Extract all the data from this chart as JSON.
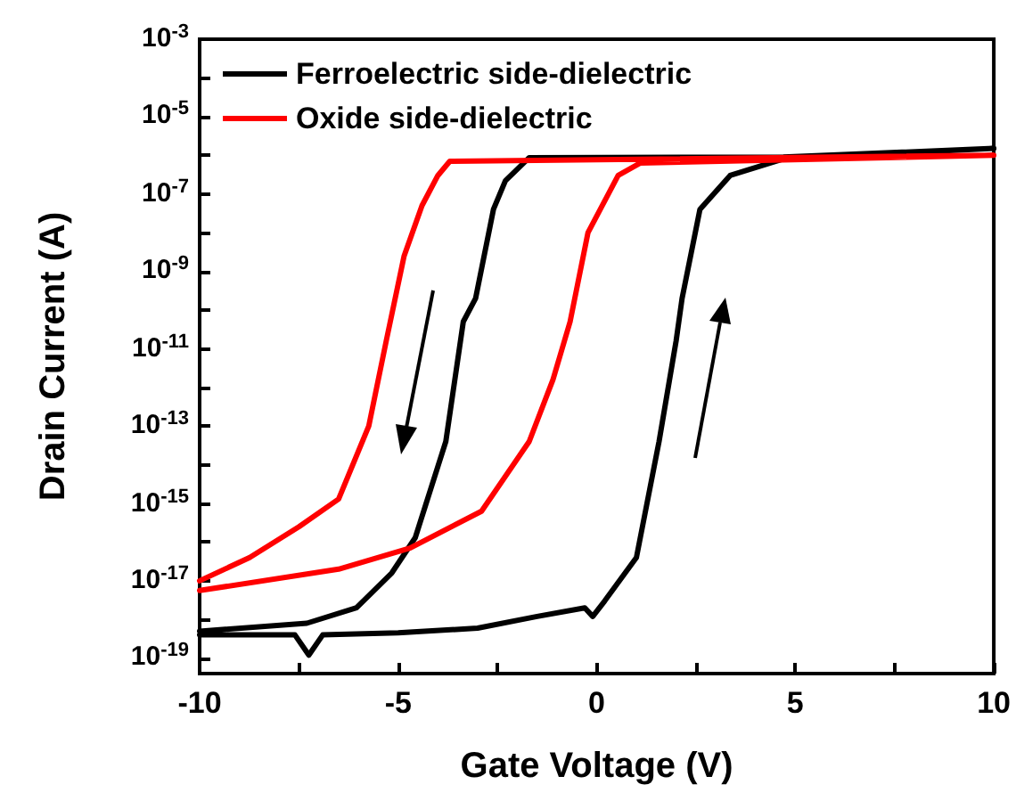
{
  "chart_data": {
    "type": "line",
    "xlabel": "Gate Voltage (V)",
    "ylabel": "Drain Current (A)",
    "log": "y",
    "grid": false,
    "legend": "top left",
    "marker": "none",
    "line_style": "solid",
    "xlim": [
      -10,
      10
    ],
    "xticks": [
      -10,
      {
        "value": -7.5,
        "label": null
      },
      -5,
      {
        "value": -2.5,
        "label": null
      },
      0,
      {
        "value": 2.5,
        "label": null
      },
      5,
      {
        "value": 7.5,
        "label": null
      },
      10
    ],
    "ylim": [
      4e-20,
      0.001
    ],
    "yticks": [
      {
        "value": 0.001,
        "label": "10$^{-3}$"
      },
      {
        "value": 0.0001,
        "label": null
      },
      {
        "value": 1e-05,
        "label": "10$^{-5}$"
      },
      {
        "value": 1e-06,
        "label": null
      },
      {
        "value": 1e-07,
        "label": "10$^{-7}$"
      },
      {
        "value": 1e-08,
        "label": null
      },
      {
        "value": 1e-09,
        "label": "10$^{-9}$"
      },
      {
        "value": 1e-10,
        "label": null
      },
      {
        "value": 1e-11,
        "label": "10$^{-11}$"
      },
      {
        "value": 1e-12,
        "label": null
      },
      {
        "value": 1e-13,
        "label": "10$^{-13}$"
      },
      {
        "value": 1e-14,
        "label": null
      },
      {
        "value": 1e-15,
        "label": "10$^{-15}$"
      },
      {
        "value": 1e-16,
        "label": null
      },
      {
        "value": 1e-17,
        "label": "10$^{-17}$"
      },
      {
        "value": 1e-18,
        "label": null
      },
      {
        "value": 1e-19,
        "label": "10$^{-19}$"
      }
    ],
    "series": [
      {
        "name": "Ferroelectric side-dielectric",
        "color": "#000000",
        "x": [
          -10,
          -8,
          -7.6,
          -7.25,
          -6.9,
          -5,
          -3,
          -1.5,
          -0.3,
          -0.1,
          0.2,
          1,
          1.57,
          2,
          2.15,
          2.6,
          3.36,
          4.7,
          10,
          4.7,
          -1.7,
          -2.3,
          -2.6,
          -3.05,
          -3.36,
          -3.8,
          -4.57,
          -5.16,
          -6.05,
          -7.3,
          -10
        ],
        "values": [
          4e-19,
          4e-19,
          4e-19,
          1.2e-19,
          4e-19,
          4.5e-19,
          6e-19,
          1.2e-18,
          2e-18,
          1.2e-18,
          3e-18,
          4e-17,
          4e-14,
          1.6e-11,
          2e-10,
          4e-08,
          3e-07,
          8e-07,
          1.5e-06,
          9e-07,
          8.7e-07,
          2.2e-07,
          4e-08,
          2e-10,
          5e-11,
          4e-14,
          1.3e-16,
          1.6e-17,
          2e-18,
          8e-19,
          5e-19
        ]
      },
      {
        "name": "Oxide side-dielectric",
        "color": "#ff0000",
        "x": [
          -10,
          -6.5,
          -4.7,
          -2.9,
          -1.7,
          -1.1,
          -0.67,
          -0.22,
          0.54,
          1.1,
          10,
          -3.7,
          -4,
          -4.4,
          -4.85,
          -5.3,
          -5.74,
          -6.5,
          -7.5,
          -8.74,
          -10
        ],
        "values": [
          5.6e-18,
          2e-17,
          7e-17,
          6.3e-16,
          4e-14,
          1.6e-12,
          5e-11,
          1e-08,
          3e-07,
          6.3e-07,
          1e-06,
          7e-07,
          3e-07,
          5e-08,
          2.5e-09,
          1.6e-11,
          1e-13,
          1.3e-15,
          2.5e-16,
          4e-17,
          1e-17
        ]
      }
    ]
  }
}
